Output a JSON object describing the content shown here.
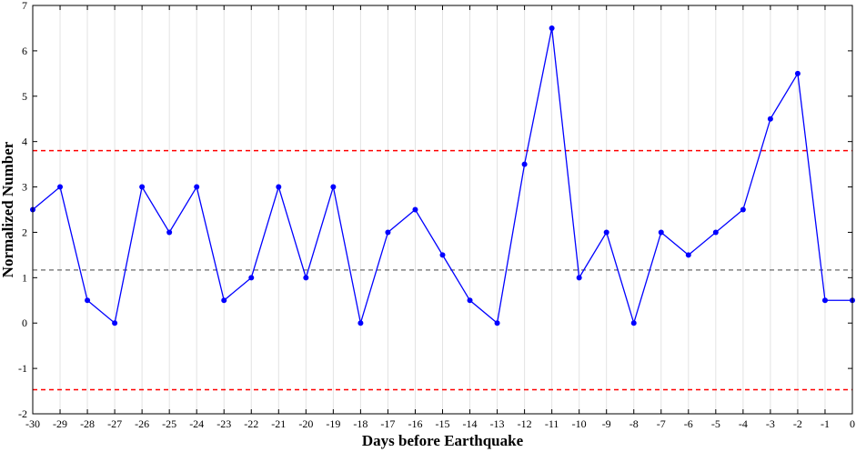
{
  "chart_data": {
    "type": "line",
    "xlabel": "Days before Earthquake",
    "ylabel": "Normalized Number",
    "xlim": [
      -30,
      0
    ],
    "ylim": [
      -2,
      7
    ],
    "x_ticks": [
      -30,
      -29,
      -28,
      -27,
      -26,
      -25,
      -24,
      -23,
      -22,
      -21,
      -20,
      -19,
      -18,
      -17,
      -16,
      -15,
      -14,
      -13,
      -12,
      -11,
      -10,
      -9,
      -8,
      -7,
      -6,
      -5,
      -4,
      -3,
      -2,
      -1,
      0
    ],
    "y_ticks": [
      -2,
      -1,
      0,
      1,
      2,
      3,
      4,
      5,
      6,
      7
    ],
    "grid": "vertical",
    "series": [
      {
        "color": "#0000ff",
        "x": [
          -30,
          -29,
          -28,
          -27,
          -26,
          -25,
          -24,
          -23,
          -22,
          -21,
          -20,
          -19,
          -18,
          -17,
          -16,
          -15,
          -14,
          -13,
          -12,
          -11,
          -10,
          -9,
          -8,
          -7,
          -6,
          -5,
          -4,
          -3,
          -2,
          -1,
          0
        ],
        "y": [
          2.5,
          3,
          0.5,
          0,
          3,
          2,
          3,
          0.5,
          1,
          3,
          1,
          3,
          0,
          2,
          2.5,
          1.5,
          0.5,
          0,
          3.5,
          6.5,
          1,
          2,
          0,
          2,
          1.5,
          2,
          2.5,
          4.5,
          5.5,
          0.5,
          0.5
        ]
      }
    ],
    "reference_lines": [
      {
        "y": 3.8,
        "color": "#ff0000",
        "style": "dashed"
      },
      {
        "y": 1.17,
        "color": "#808080",
        "style": "dashed"
      },
      {
        "y": -1.47,
        "color": "#ff0000",
        "style": "dashed"
      }
    ]
  }
}
